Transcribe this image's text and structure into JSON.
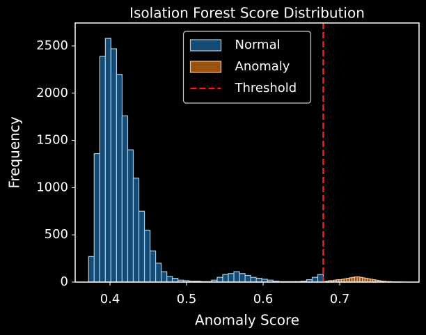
{
  "chart_data": {
    "type": "histogram",
    "title": "Isolation Forest Score Distribution",
    "x_label": "Anomaly Score",
    "y_label": "Frequency",
    "xlim": [
      0.3545,
      0.8036
    ],
    "xticks": [
      0.4,
      0.5,
      0.6,
      0.7
    ],
    "ylim": [
      0,
      2743
    ],
    "yticks": [
      0,
      500,
      1000,
      1500,
      2000,
      2500
    ],
    "legend": "upper center",
    "series": [
      {
        "name": "Normal",
        "color": "#144b74",
        "edgecolor": "#a9cbe3",
        "bins": [
          0.372,
          0.3793,
          0.3866,
          0.3939,
          0.4012,
          0.4085,
          0.4158,
          0.4231,
          0.4304,
          0.4377,
          0.445,
          0.4523,
          0.4596,
          0.4669,
          0.4742,
          0.4815,
          0.4888,
          0.4961,
          0.5034,
          0.5107,
          0.518,
          0.5253,
          0.5326,
          0.5399,
          0.5472,
          0.5545,
          0.5618,
          0.5691,
          0.5764,
          0.5837,
          0.591,
          0.5983,
          0.6056,
          0.6129,
          0.6202,
          0.6275,
          0.6348,
          0.6421,
          0.6494,
          0.6567,
          0.664,
          0.6713,
          0.6786
        ],
        "values": [
          270,
          1360,
          2390,
          2580,
          2470,
          2200,
          1760,
          1400,
          1100,
          750,
          550,
          330,
          200,
          110,
          60,
          40,
          20,
          15,
          10,
          10,
          5,
          5,
          20,
          50,
          80,
          90,
          110,
          90,
          70,
          50,
          40,
          30,
          20,
          10,
          5,
          5,
          5,
          5,
          10,
          25,
          50,
          80
        ]
      },
      {
        "name": "Anomaly",
        "color": "#9c500f",
        "edgecolor": "#f3c393",
        "bins": [
          0.6786,
          0.682,
          0.6854,
          0.6888,
          0.6922,
          0.6956,
          0.699,
          0.7024,
          0.7058,
          0.7092,
          0.7126,
          0.716,
          0.7194,
          0.7228,
          0.7262,
          0.7296,
          0.733,
          0.7364,
          0.7398,
          0.7432,
          0.7466,
          0.75,
          0.7534,
          0.7568,
          0.7602,
          0.7636,
          0.767,
          0.7704,
          0.7738,
          0.7772,
          0.7806
        ],
        "values": [
          5,
          10,
          15,
          15,
          20,
          25,
          25,
          30,
          35,
          40,
          45,
          50,
          55,
          55,
          50,
          45,
          40,
          35,
          30,
          25,
          20,
          15,
          10,
          8,
          5,
          5,
          3,
          2,
          1,
          1
        ]
      }
    ],
    "threshold": {
      "name": "Threshold",
      "value": 0.6786,
      "color": "#ff1a1a"
    }
  }
}
